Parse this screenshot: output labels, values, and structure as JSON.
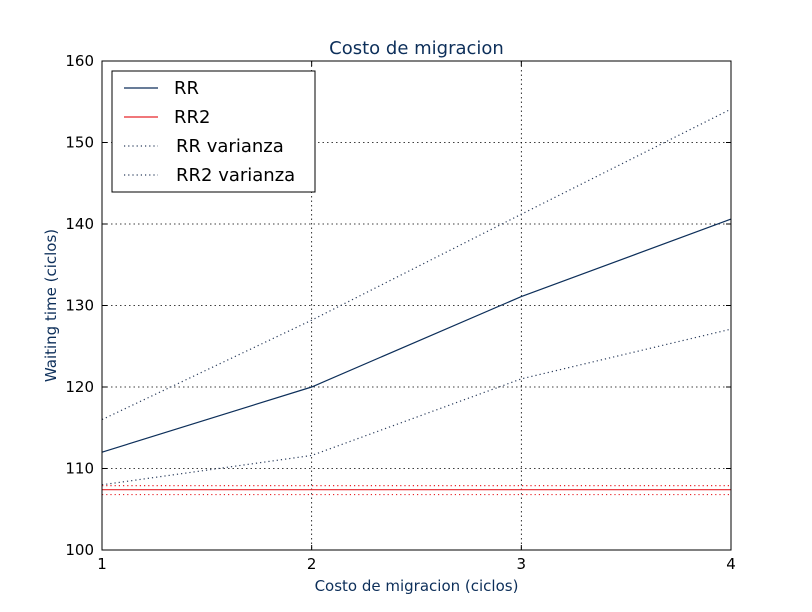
{
  "chart_data": {
    "type": "line",
    "title": "Costo de migracion",
    "xlabel": "Costo de migracion (ciclos)",
    "ylabel": "Waiting time (ciclos)",
    "x": [
      1,
      2,
      3,
      4
    ],
    "xlim": [
      1,
      4
    ],
    "ylim": [
      100,
      160
    ],
    "xticks": [
      "1",
      "2",
      "3",
      "4"
    ],
    "yticks": [
      "100",
      "110",
      "120",
      "130",
      "140",
      "150",
      "160"
    ],
    "grid": true,
    "legend_position": "top-left",
    "series": [
      {
        "name": "RR",
        "values": [
          112.0,
          120.0,
          131.1,
          140.6
        ],
        "color": "#0d2f5a",
        "style": "solid"
      },
      {
        "name": "RR2",
        "values": [
          107.4,
          107.4,
          107.4,
          107.4
        ],
        "color": "#e8262b",
        "style": "solid"
      },
      {
        "name": "RR varianza",
        "values": [
          116.0,
          128.2,
          141.2,
          154.1
        ],
        "color": "#2a3c5c",
        "style": "dotted",
        "band_of": "RR",
        "band": "upper"
      },
      {
        "name": "RR varianza",
        "values": [
          108.0,
          111.6,
          121.0,
          127.1
        ],
        "color": "#2a3c5c",
        "style": "dotted",
        "band_of": "RR",
        "band": "lower"
      },
      {
        "name": "RR2 varianza",
        "values": [
          107.9,
          107.9,
          107.9,
          107.9
        ],
        "color": "#e8262b",
        "style": "dotted",
        "band_of": "RR2",
        "band": "upper"
      },
      {
        "name": "RR2 varianza",
        "values": [
          106.8,
          106.8,
          106.8,
          106.8
        ],
        "color": "#e8262b",
        "style": "dotted",
        "band_of": "RR2",
        "band": "lower"
      }
    ],
    "legend": [
      {
        "label": "RR",
        "color": "#0d2f5a",
        "style": "solid"
      },
      {
        "label": "RR2",
        "color": "#e8262b",
        "style": "solid"
      },
      {
        "label": "RR varianza",
        "color": "#2a3c5c",
        "style": "dotted"
      },
      {
        "label": "RR2 varianza",
        "color": "#2a3c5c",
        "style": "dotted"
      }
    ],
    "colors": {
      "title": "#0d2f5a",
      "axis_labels": "#0d2f5a"
    }
  }
}
